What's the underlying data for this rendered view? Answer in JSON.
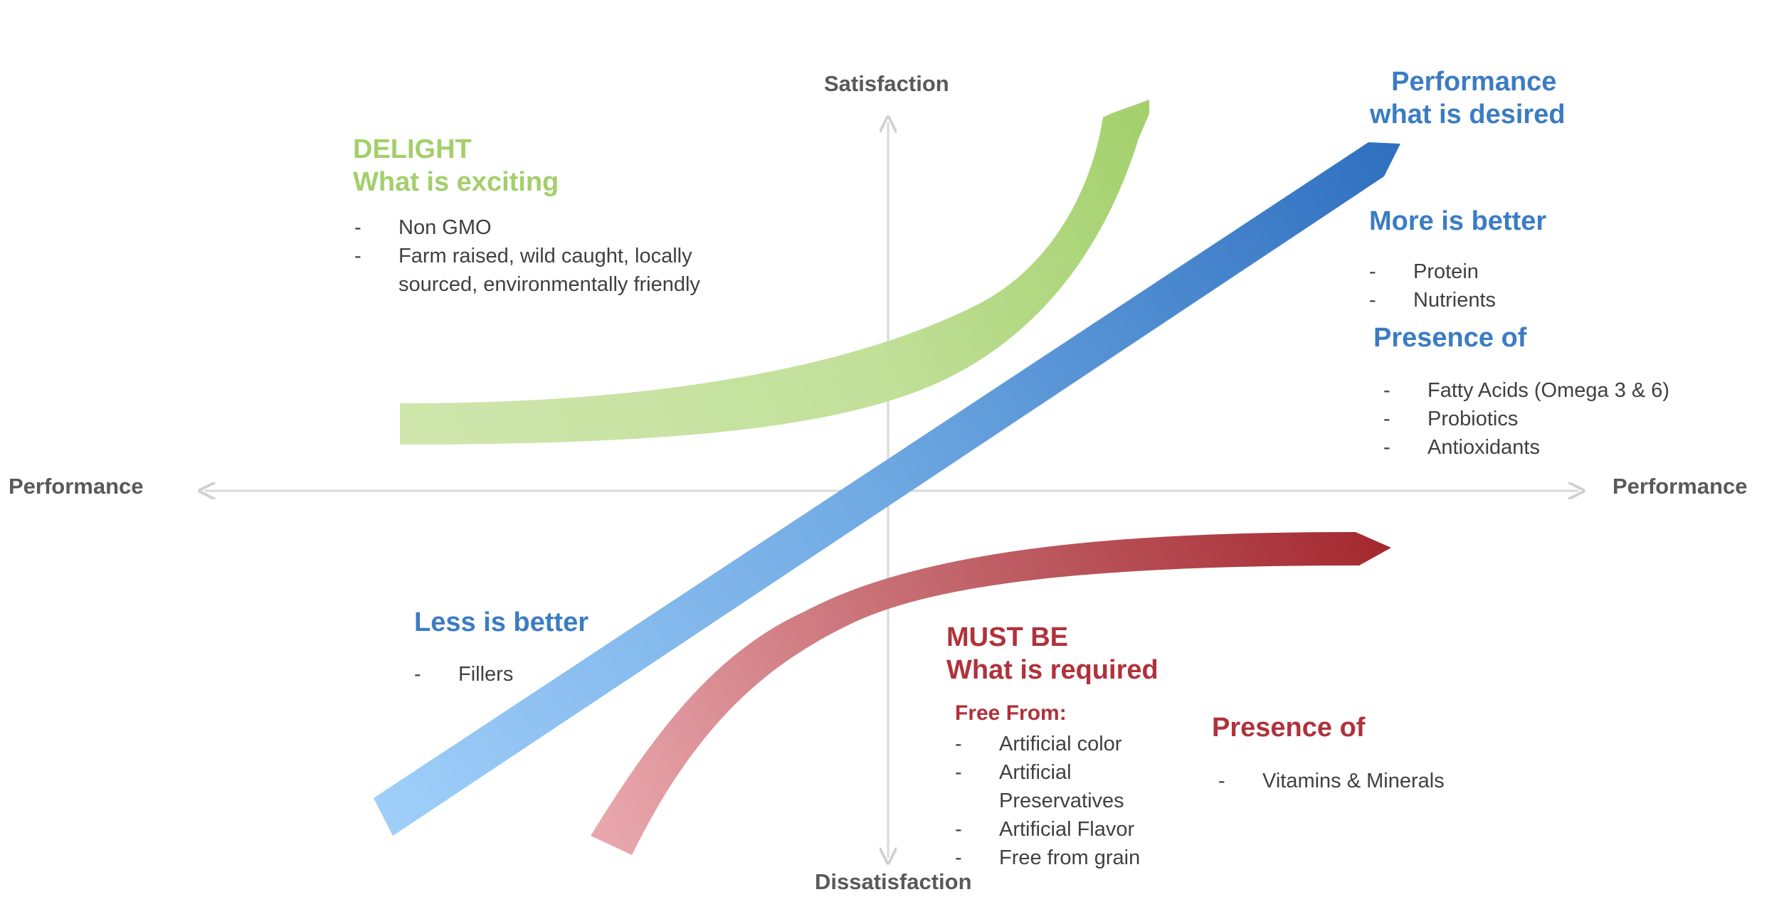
{
  "axes": {
    "top": "Satisfaction",
    "bottom": "Dissatisfaction",
    "left": "Performance",
    "right": "Performance"
  },
  "colors": {
    "delight": "#a3cf6b",
    "performance": "#3b7cc4",
    "must_be": "#b0323b",
    "axis": "#d9d9d9"
  },
  "delight": {
    "title_line1": "DELIGHT",
    "title_line2": "What is exciting",
    "items": [
      "Non GMO",
      "Farm raised, wild caught, locally",
      "sourced, environmentally friendly"
    ]
  },
  "performance": {
    "title_line1": "Performance",
    "title_line2": "what is desired",
    "more_heading": "More is better",
    "more_items": [
      "Protein",
      "Nutrients"
    ],
    "presence_heading": "Presence of",
    "presence_items": [
      "Fatty Acids (Omega 3 & 6)",
      "Probiotics",
      "Antioxidants"
    ],
    "less_heading": "Less is better",
    "less_items": [
      "Fillers"
    ]
  },
  "must_be": {
    "title_line1": "MUST BE",
    "title_line2": "What is required",
    "free_heading": "Free From:",
    "free_items": [
      "Artificial color",
      "Artificial",
      "Preservatives",
      "Artificial Flavor",
      "Free from grain"
    ],
    "presence_heading": "Presence of",
    "presence_items": [
      "Vitamins & Minerals"
    ]
  }
}
